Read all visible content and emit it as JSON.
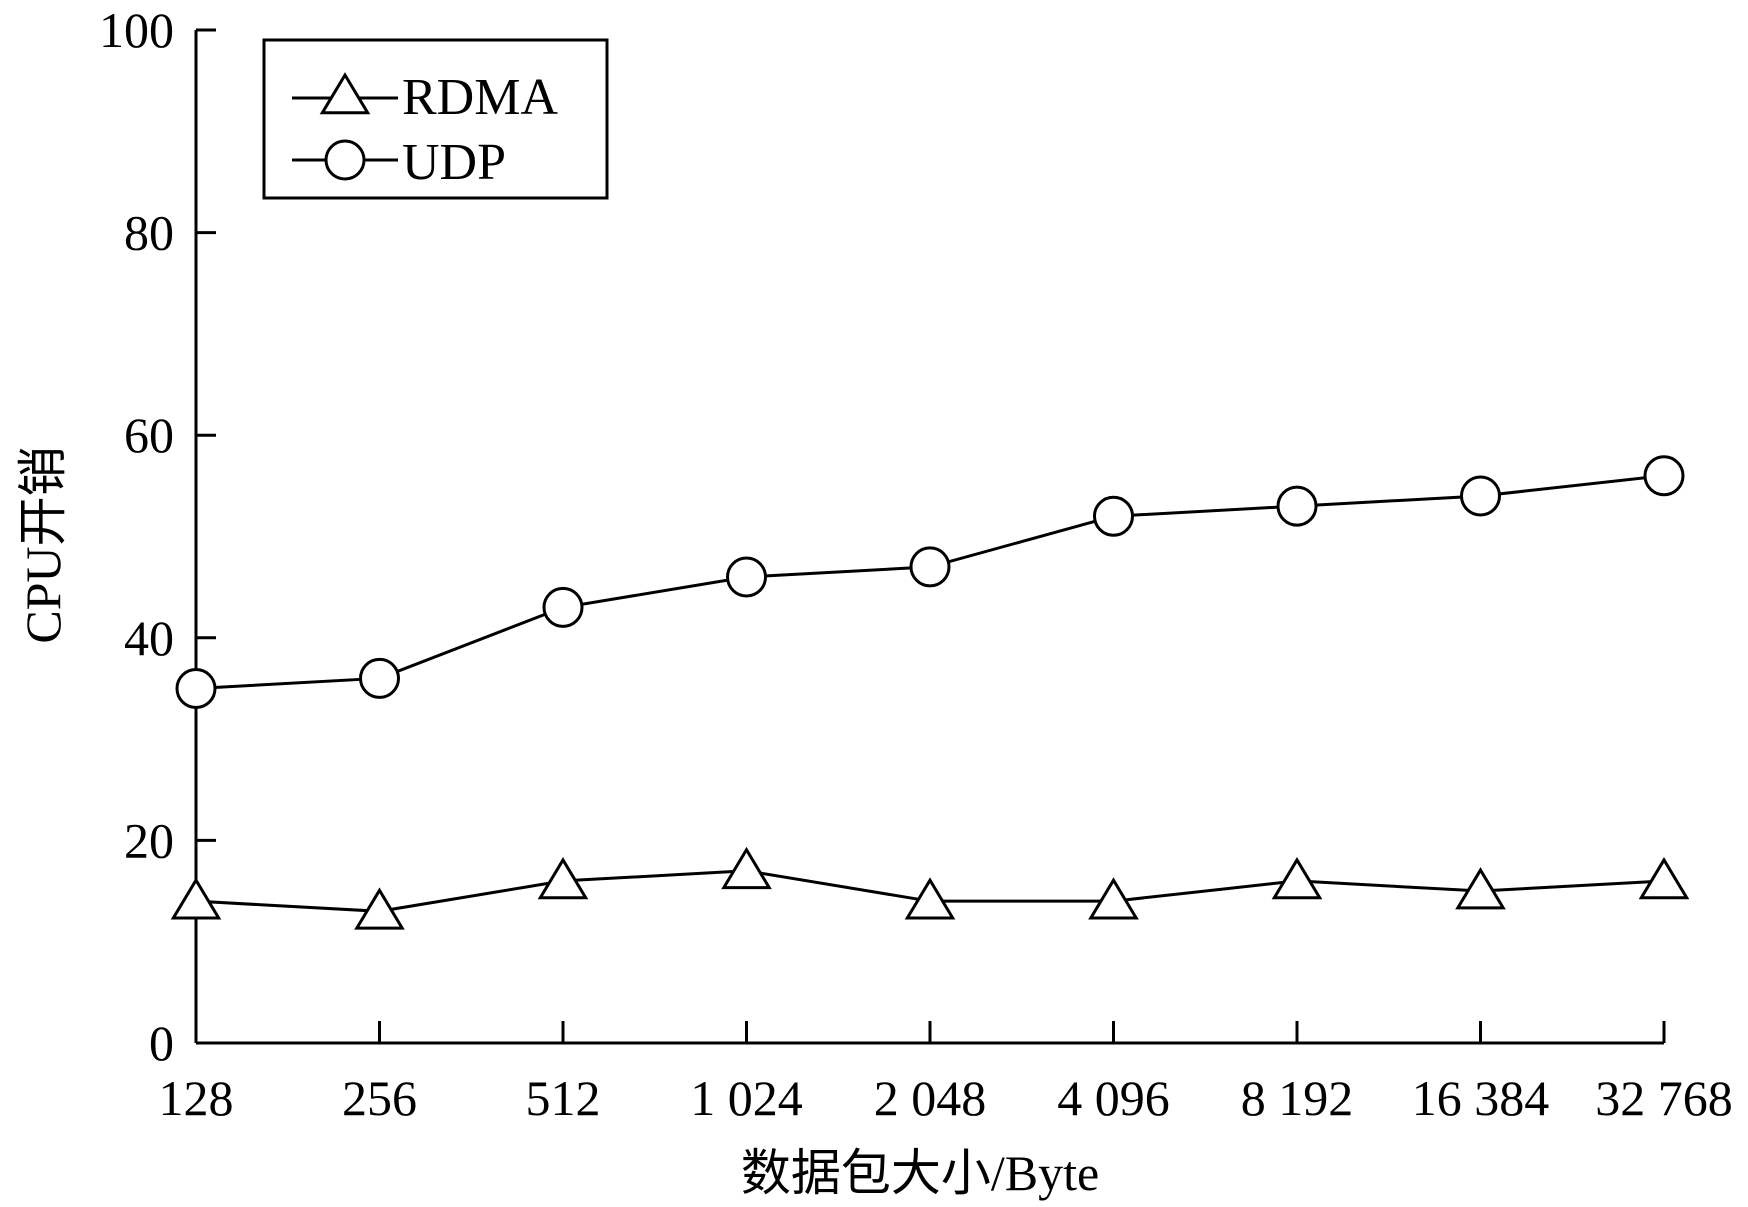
{
  "chart_data": {
    "type": "line",
    "title": "",
    "xlabel": "数据包大小/Byte",
    "ylabel": "CPU开销",
    "categories": [
      "128",
      "256",
      "512",
      "1 024",
      "2 048",
      "4 096",
      "8 192",
      "16 384",
      "32 768"
    ],
    "ylim": [
      0,
      100
    ],
    "yticks": [
      "0",
      "20",
      "40",
      "60",
      "80",
      "100"
    ],
    "grid": false,
    "legend_position": "top-left",
    "series": [
      {
        "name": "RDMA",
        "marker": "triangle",
        "values": [
          14,
          13,
          16,
          17,
          14,
          14,
          16,
          15,
          16
        ]
      },
      {
        "name": "UDP",
        "marker": "circle",
        "values": [
          35,
          36,
          43,
          46,
          47,
          52,
          53,
          54,
          56
        ]
      }
    ]
  }
}
